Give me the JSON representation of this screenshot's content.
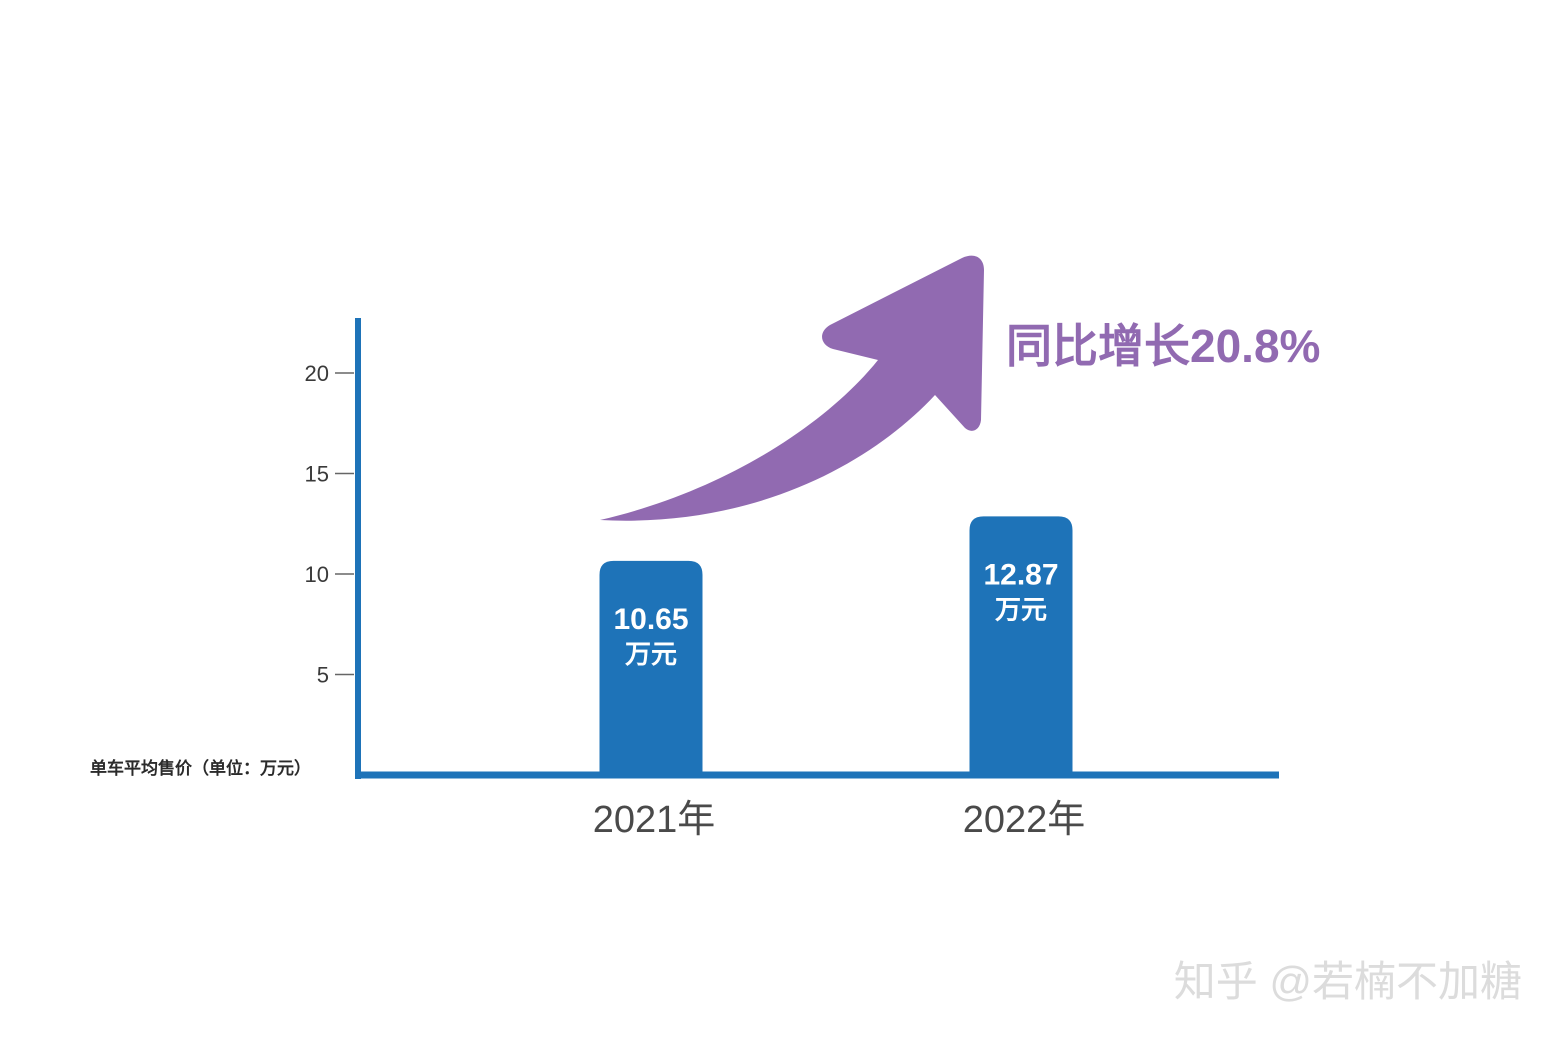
{
  "chart_data": {
    "type": "bar",
    "categories": [
      "2021年",
      "2022年"
    ],
    "values": [
      10.65,
      12.87
    ],
    "value_unit": "万元",
    "ylabel": "单车平均售价（单位：万元）",
    "ylim": [
      0,
      22.7
    ],
    "yticks": [
      5,
      10,
      15,
      20
    ],
    "grid": false,
    "annotation": "同比增长20.8%"
  },
  "watermark": "知乎 @若楠不加糖",
  "colors": {
    "bar": "#1e73b8",
    "axis": "#1e73b8",
    "arrow": "#916ab1",
    "tick_text": "#3a3a3a",
    "category_text": "#4a4a4a",
    "ylabel_text": "#2b2b2b",
    "bar_label": "#ffffff",
    "watermark": "#dcdcdc"
  }
}
